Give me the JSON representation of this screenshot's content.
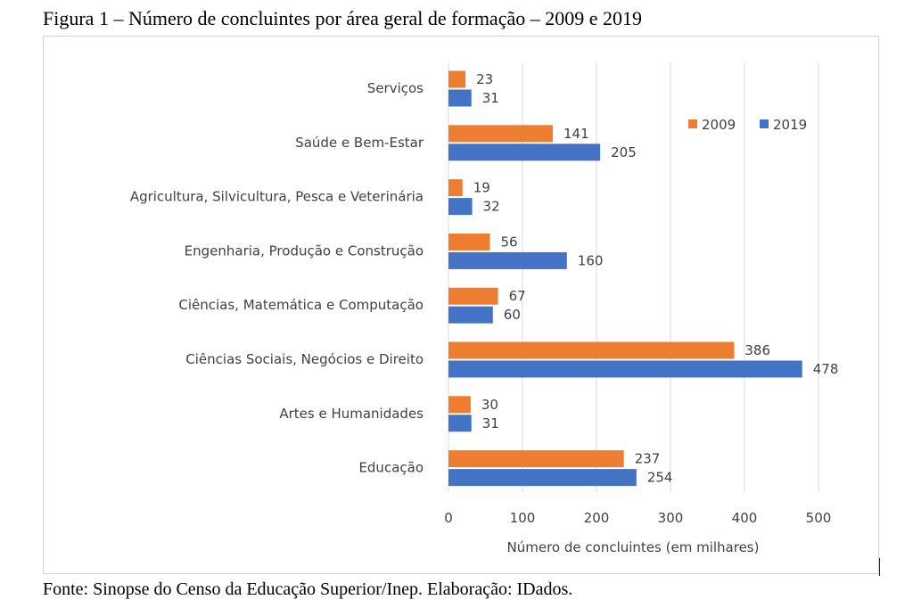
{
  "figure_title": "Figura 1 – Número de concluintes por área geral de formação – 2009 e 2019",
  "source_note": "Fonte: Sinopse do Censo da Educação Superior/Inep. Elaboração: IDados.",
  "colors": {
    "s2009": "#ED7D31",
    "s2019": "#4472C4",
    "grid": "#d9d9d9",
    "text": "#404040"
  },
  "chart_data": {
    "type": "bar",
    "orientation": "horizontal",
    "categories": [
      "Serviços",
      "Saúde e Bem-Estar",
      "Agricultura, Silvicultura, Pesca e Veterinária",
      "Engenharia, Produção e Construção",
      "Ciências, Matemática e Computação",
      "Ciências Sociais, Negócios e Direito",
      "Artes e Humanidades",
      "Educação"
    ],
    "series": [
      {
        "name": "2009",
        "values": [
          23,
          141,
          19,
          56,
          67,
          386,
          30,
          237
        ]
      },
      {
        "name": "2019",
        "values": [
          31,
          205,
          32,
          160,
          60,
          478,
          31,
          254
        ]
      }
    ],
    "xlabel": "Número de concluintes (em milhares)",
    "ylabel": "",
    "xlim": [
      0,
      500
    ],
    "xticks": [
      0,
      100,
      200,
      300,
      400,
      500
    ],
    "grid": true,
    "legend": "top-right"
  }
}
